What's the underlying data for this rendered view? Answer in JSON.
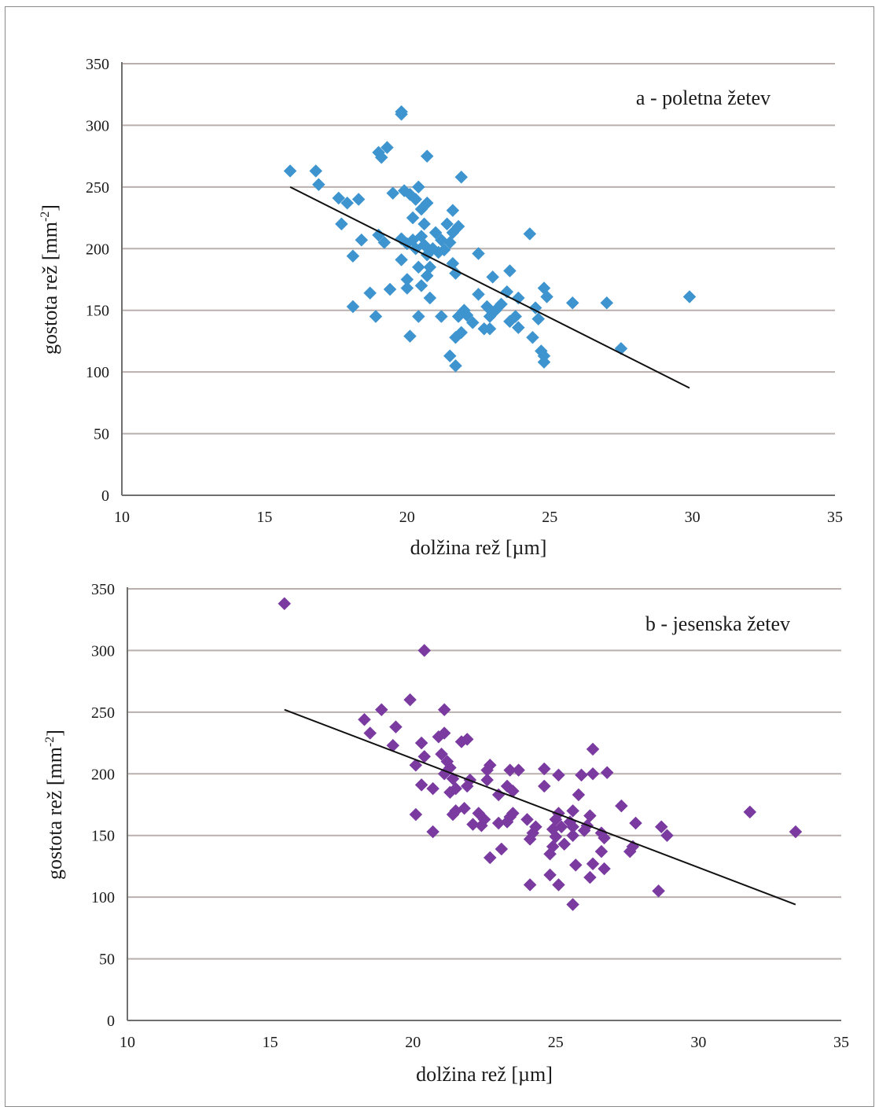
{
  "chart_data": [
    {
      "type": "scatter",
      "title": "a - poletna žetev",
      "xlabel": "dolžina rež [µm]",
      "ylabel_main": "gostota rež [mm",
      "ylabel_sup": "-2",
      "ylabel_end": "]",
      "xlim": [
        10,
        35
      ],
      "ylim": [
        0,
        350
      ],
      "xticks": [
        "10",
        "15",
        "20",
        "25",
        "30",
        "35"
      ],
      "yticks": [
        "0",
        "50",
        "100",
        "150",
        "200",
        "250",
        "300",
        "350"
      ],
      "grid": true,
      "marker_color": "#3d94cf",
      "trendline": {
        "x1": 15.9,
        "y1": 250,
        "x2": 29.9,
        "y2": 87
      },
      "points": [
        [
          15.9,
          263
        ],
        [
          16.8,
          263
        ],
        [
          16.9,
          252
        ],
        [
          17.6,
          241
        ],
        [
          17.7,
          220
        ],
        [
          17.9,
          237
        ],
        [
          18.1,
          194
        ],
        [
          18.1,
          153
        ],
        [
          18.3,
          240
        ],
        [
          18.4,
          207
        ],
        [
          18.7,
          164
        ],
        [
          18.9,
          145
        ],
        [
          19.0,
          278
        ],
        [
          19.1,
          274
        ],
        [
          19.0,
          211
        ],
        [
          19.2,
          205
        ],
        [
          19.3,
          282
        ],
        [
          19.4,
          167
        ],
        [
          19.5,
          245
        ],
        [
          19.8,
          311
        ],
        [
          19.8,
          309
        ],
        [
          19.8,
          208
        ],
        [
          19.9,
          247
        ],
        [
          19.8,
          191
        ],
        [
          20.0,
          204
        ],
        [
          20.0,
          175
        ],
        [
          20.0,
          168
        ],
        [
          20.1,
          129
        ],
        [
          20.1,
          244
        ],
        [
          20.2,
          225
        ],
        [
          20.2,
          207
        ],
        [
          20.3,
          240
        ],
        [
          20.3,
          200
        ],
        [
          20.4,
          250
        ],
        [
          20.4,
          185
        ],
        [
          20.4,
          145
        ],
        [
          20.5,
          232
        ],
        [
          20.5,
          210
        ],
        [
          20.5,
          170
        ],
        [
          20.6,
          220
        ],
        [
          20.6,
          203
        ],
        [
          20.7,
          237
        ],
        [
          20.7,
          195
        ],
        [
          20.7,
          178
        ],
        [
          20.7,
          275
        ],
        [
          20.8,
          185
        ],
        [
          20.8,
          160
        ],
        [
          20.9,
          200
        ],
        [
          21.0,
          213
        ],
        [
          21.1,
          197
        ],
        [
          21.2,
          207
        ],
        [
          21.2,
          145
        ],
        [
          21.3,
          199
        ],
        [
          21.4,
          220
        ],
        [
          21.5,
          205
        ],
        [
          21.5,
          113
        ],
        [
          21.6,
          213
        ],
        [
          21.6,
          231
        ],
        [
          21.6,
          188
        ],
        [
          21.7,
          180
        ],
        [
          21.7,
          128
        ],
        [
          21.7,
          105
        ],
        [
          21.8,
          218
        ],
        [
          21.8,
          145
        ],
        [
          21.9,
          258
        ],
        [
          21.9,
          132
        ],
        [
          22.0,
          150
        ],
        [
          22.1,
          146
        ],
        [
          22.3,
          140
        ],
        [
          22.5,
          196
        ],
        [
          22.5,
          163
        ],
        [
          22.7,
          135
        ],
        [
          22.8,
          153
        ],
        [
          22.9,
          145
        ],
        [
          22.9,
          135
        ],
        [
          23.0,
          177
        ],
        [
          23.1,
          150
        ],
        [
          23.3,
          155
        ],
        [
          23.5,
          165
        ],
        [
          23.6,
          182
        ],
        [
          23.6,
          141
        ],
        [
          23.8,
          145
        ],
        [
          23.9,
          160
        ],
        [
          23.9,
          136
        ],
        [
          24.3,
          212
        ],
        [
          24.4,
          128
        ],
        [
          24.5,
          152
        ],
        [
          24.6,
          143
        ],
        [
          24.7,
          117
        ],
        [
          24.8,
          108
        ],
        [
          24.8,
          113
        ],
        [
          24.8,
          168
        ],
        [
          24.9,
          161
        ],
        [
          25.8,
          156
        ],
        [
          27.0,
          156
        ],
        [
          27.5,
          119
        ],
        [
          29.9,
          161
        ]
      ]
    },
    {
      "type": "scatter",
      "title": "b - jesenska žetev",
      "xlabel": "dolžina rež [µm]",
      "ylabel_main": "gostota rež [mm",
      "ylabel_sup": "-2",
      "ylabel_end": "]",
      "xlim": [
        10,
        35
      ],
      "ylim": [
        0,
        350
      ],
      "xticks": [
        "10",
        "15",
        "20",
        "25",
        "30",
        "35"
      ],
      "yticks": [
        "0",
        "50",
        "100",
        "150",
        "200",
        "250",
        "300",
        "350"
      ],
      "grid": true,
      "marker_color": "#7a3aa0",
      "trendline": {
        "x1": 15.5,
        "y1": 252,
        "x2": 33.4,
        "y2": 94
      },
      "points": [
        [
          15.5,
          338
        ],
        [
          18.3,
          244
        ],
        [
          18.5,
          233
        ],
        [
          18.9,
          252
        ],
        [
          19.3,
          223
        ],
        [
          19.4,
          238
        ],
        [
          19.9,
          260
        ],
        [
          20.1,
          207
        ],
        [
          20.1,
          167
        ],
        [
          20.3,
          225
        ],
        [
          20.3,
          191
        ],
        [
          20.4,
          300
        ],
        [
          20.4,
          214
        ],
        [
          20.7,
          188
        ],
        [
          20.7,
          153
        ],
        [
          20.9,
          230
        ],
        [
          21.0,
          216
        ],
        [
          21.1,
          233
        ],
        [
          21.1,
          252
        ],
        [
          21.1,
          200
        ],
        [
          21.2,
          210
        ],
        [
          21.3,
          185
        ],
        [
          21.3,
          205
        ],
        [
          21.4,
          196
        ],
        [
          21.4,
          167
        ],
        [
          21.5,
          188
        ],
        [
          21.5,
          170
        ],
        [
          21.7,
          226
        ],
        [
          21.8,
          172
        ],
        [
          21.9,
          228
        ],
        [
          21.9,
          190
        ],
        [
          22.0,
          195
        ],
        [
          22.1,
          159
        ],
        [
          22.3,
          168
        ],
        [
          22.4,
          158
        ],
        [
          22.5,
          163
        ],
        [
          22.6,
          195
        ],
        [
          22.6,
          203
        ],
        [
          22.7,
          207
        ],
        [
          22.7,
          132
        ],
        [
          23.0,
          183
        ],
        [
          23.0,
          160
        ],
        [
          23.1,
          139
        ],
        [
          23.3,
          190
        ],
        [
          23.3,
          161
        ],
        [
          23.4,
          203
        ],
        [
          23.4,
          165
        ],
        [
          23.5,
          186
        ],
        [
          23.5,
          168
        ],
        [
          23.7,
          203
        ],
        [
          24.0,
          163
        ],
        [
          24.1,
          110
        ],
        [
          24.1,
          147
        ],
        [
          24.2,
          152
        ],
        [
          24.3,
          157
        ],
        [
          24.6,
          204
        ],
        [
          24.6,
          190
        ],
        [
          24.8,
          118
        ],
        [
          24.8,
          135
        ],
        [
          24.9,
          141
        ],
        [
          24.9,
          155
        ],
        [
          25.0,
          163
        ],
        [
          25.0,
          149
        ],
        [
          25.1,
          168
        ],
        [
          25.1,
          110
        ],
        [
          25.1,
          199
        ],
        [
          25.2,
          157
        ],
        [
          25.3,
          143
        ],
        [
          25.5,
          161
        ],
        [
          25.6,
          94
        ],
        [
          25.6,
          150
        ],
        [
          25.6,
          157
        ],
        [
          25.6,
          170
        ],
        [
          25.7,
          126
        ],
        [
          25.8,
          183
        ],
        [
          25.9,
          199
        ],
        [
          26.0,
          154
        ],
        [
          26.1,
          158
        ],
        [
          26.2,
          116
        ],
        [
          26.2,
          166
        ],
        [
          26.3,
          220
        ],
        [
          26.3,
          200
        ],
        [
          26.3,
          127
        ],
        [
          26.6,
          137
        ],
        [
          26.6,
          152
        ],
        [
          26.7,
          148
        ],
        [
          26.7,
          123
        ],
        [
          26.8,
          201
        ],
        [
          27.3,
          174
        ],
        [
          27.6,
          137
        ],
        [
          27.7,
          141
        ],
        [
          27.8,
          160
        ],
        [
          28.6,
          105
        ],
        [
          28.7,
          157
        ],
        [
          28.9,
          150
        ],
        [
          31.8,
          169
        ],
        [
          33.4,
          153
        ]
      ]
    }
  ]
}
